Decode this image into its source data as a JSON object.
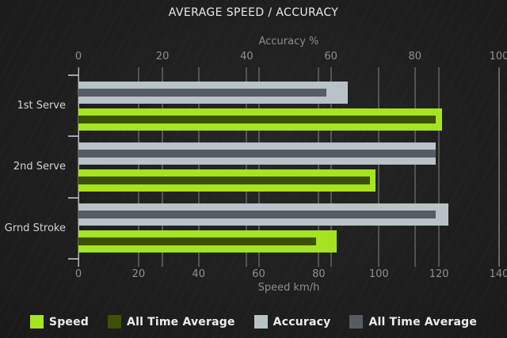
{
  "chart_data": {
    "type": "bar",
    "orientation": "horizontal",
    "title": "AVERAGE SPEED / ACCURACY",
    "categories": [
      "1st Serve",
      "2nd Serve",
      "Grnd Stroke"
    ],
    "axes": {
      "top": {
        "label": "Accuracy %",
        "min": 0,
        "max": 100,
        "ticks": [
          0,
          20,
          40,
          60,
          80,
          100
        ]
      },
      "bottom": {
        "label": "Speed km/h",
        "min": 0,
        "max": 140,
        "ticks": [
          0,
          20,
          40,
          60,
          80,
          100,
          120,
          140
        ]
      }
    },
    "series": [
      {
        "name": "Speed",
        "axis": "bottom",
        "role": "main",
        "color": "#a6e41d",
        "values": [
          121,
          99,
          86
        ]
      },
      {
        "name": "All Time Average",
        "axis": "bottom",
        "role": "average",
        "color": "#3c5106",
        "values": [
          119,
          97,
          79
        ]
      },
      {
        "name": "Accuracy",
        "axis": "top",
        "role": "main",
        "color": "#b9c2c6",
        "values": [
          64,
          85,
          88
        ]
      },
      {
        "name": "All Time Average",
        "axis": "top",
        "role": "average",
        "color": "#565c64",
        "values": [
          59,
          85,
          85
        ]
      }
    ],
    "layout": {
      "grid": true,
      "legend_position": "bottom",
      "bar_order_per_category": [
        "Accuracy",
        "Speed"
      ],
      "background": "#1f1f1f",
      "gridline_color": "#9fa4a4",
      "title_color": "#e9e9e9",
      "muted_text_color": "#8d8d8d",
      "category_text_color": "#d2d2d2"
    }
  }
}
